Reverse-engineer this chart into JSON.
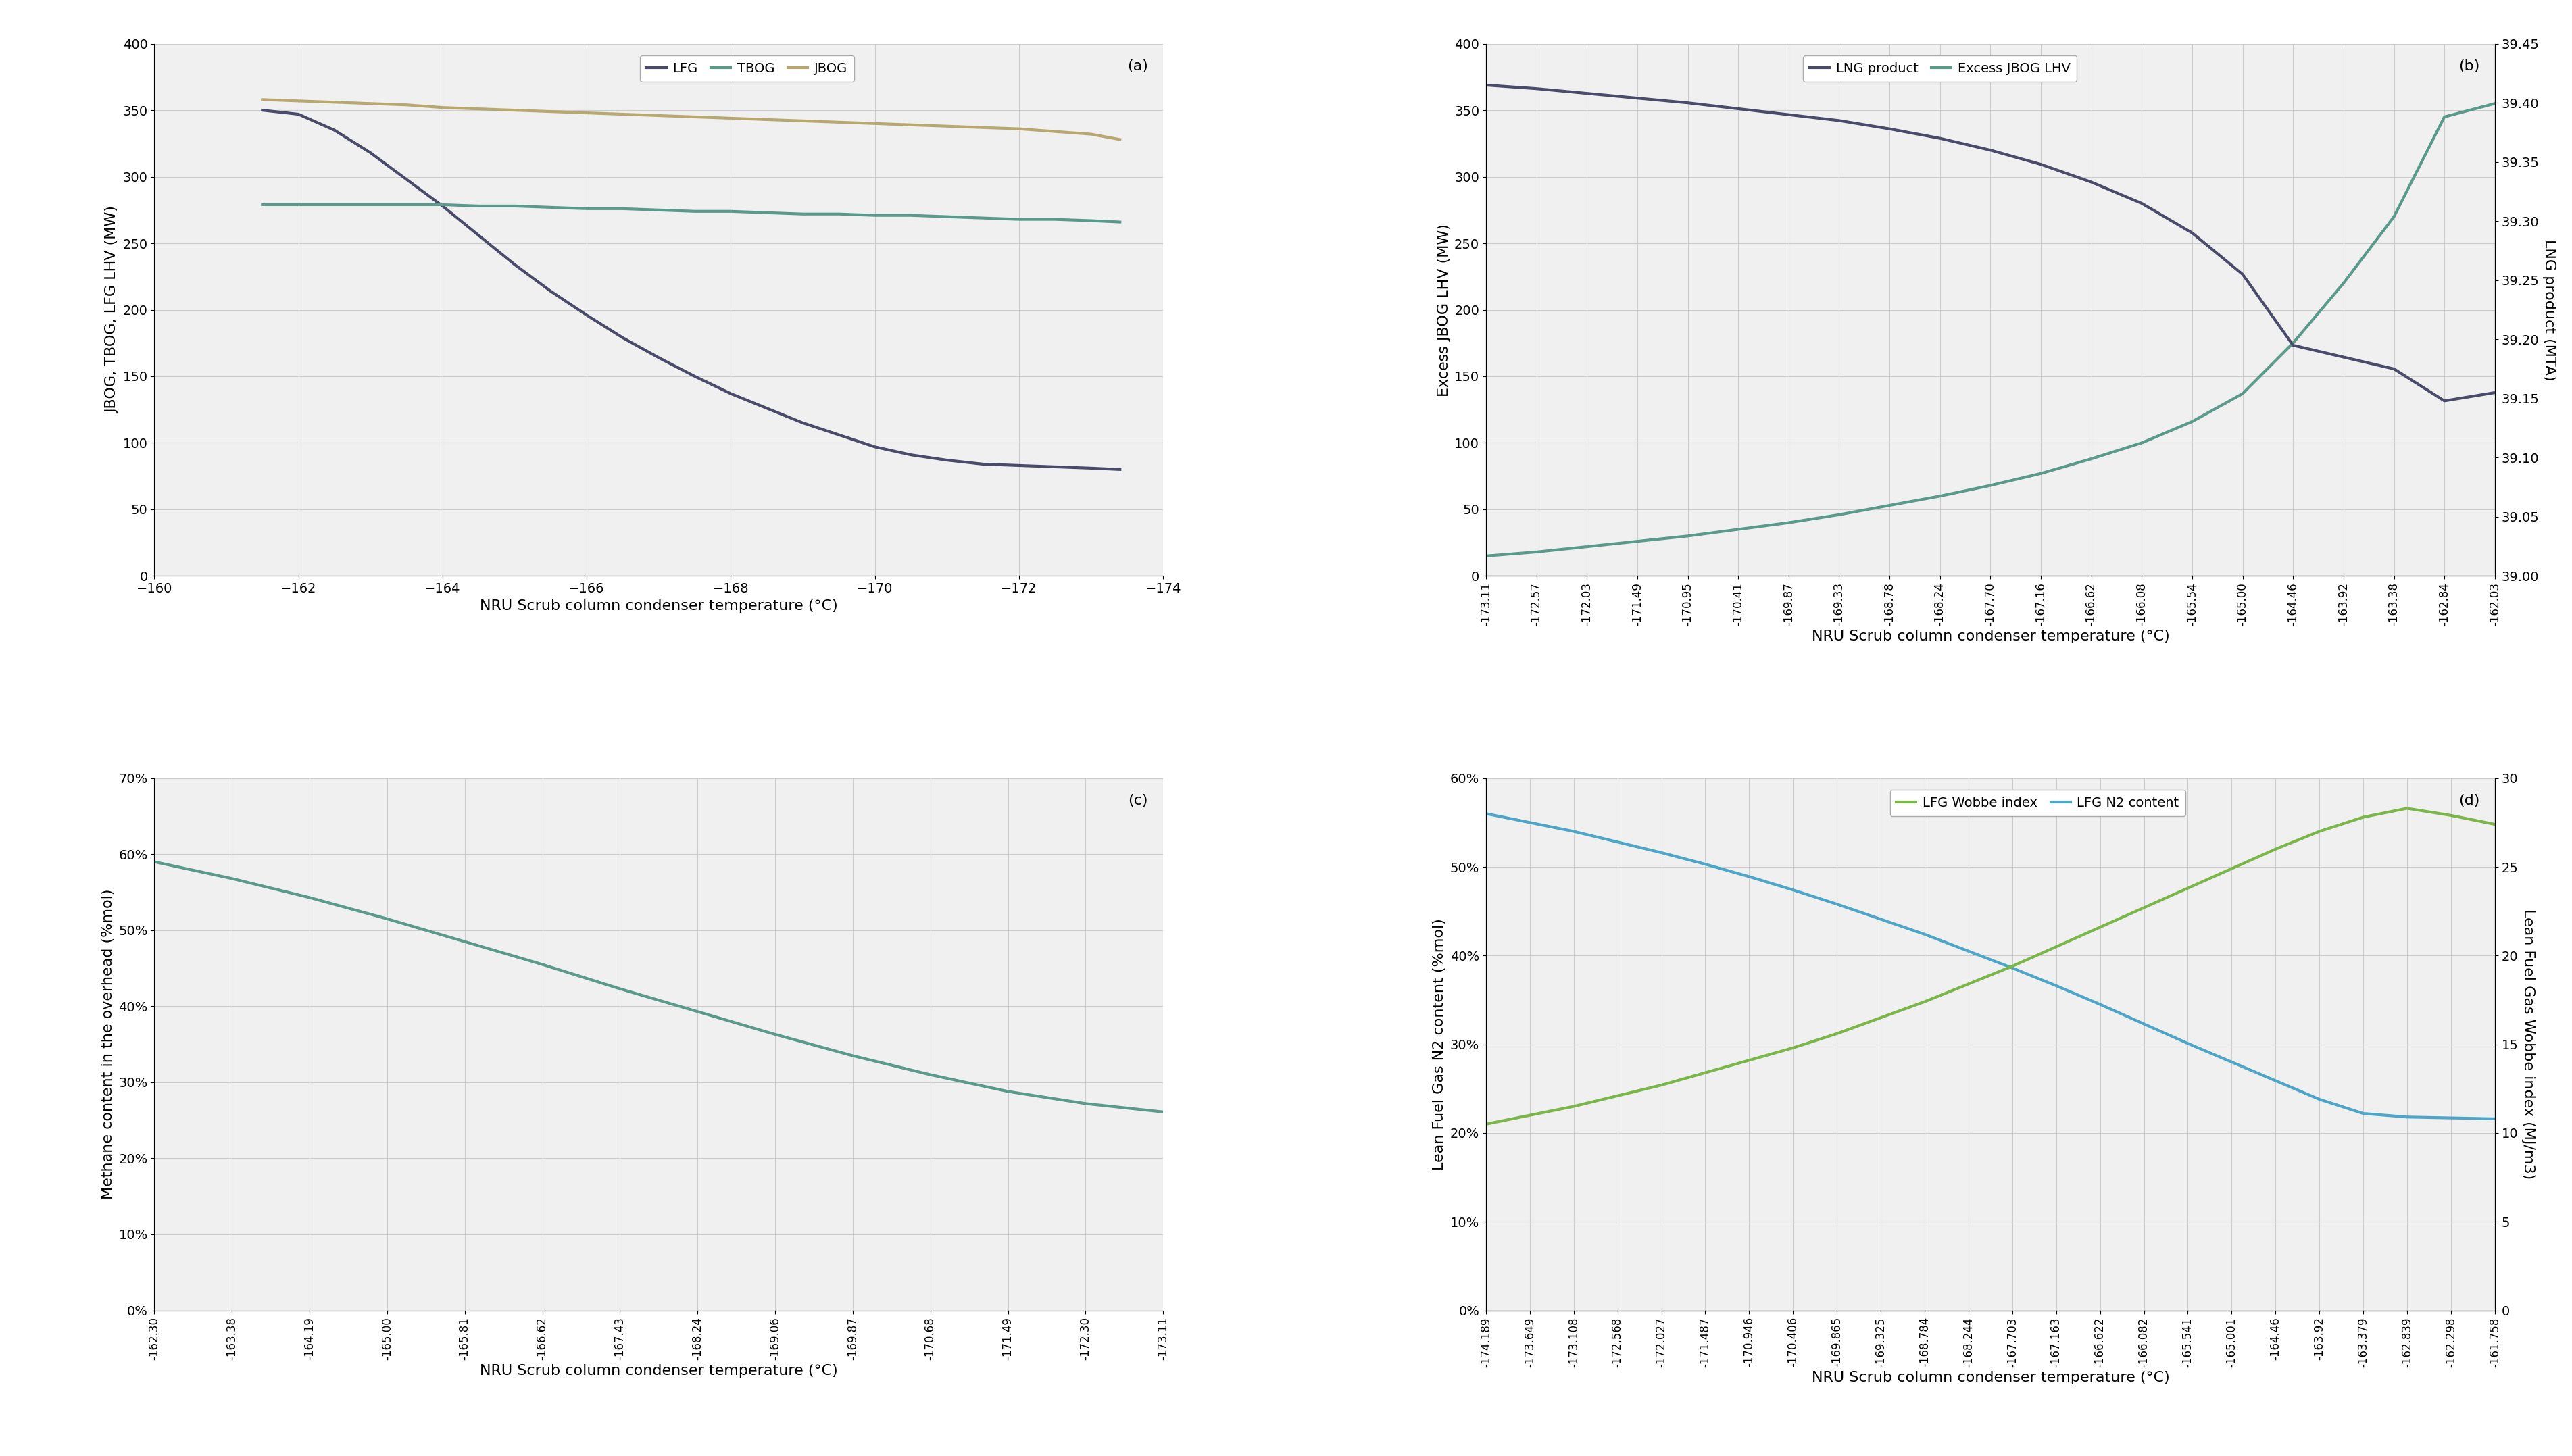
{
  "panel_a": {
    "title": "(a)",
    "xlabel": "NRU Scrub column condenser temperature (°C)",
    "ylabel": "JBOG, TBOG, LFG LHV (MW)",
    "xlim": [
      -160,
      -174
    ],
    "ylim": [
      0,
      400
    ],
    "yticks": [
      0,
      50,
      100,
      150,
      200,
      250,
      300,
      350,
      400
    ],
    "xticks": [
      -160,
      -162,
      -164,
      -166,
      -168,
      -170,
      -172,
      -174
    ],
    "LFG_x": [
      -161.5,
      -162.0,
      -162.5,
      -163.0,
      -163.5,
      -164.0,
      -164.5,
      -165.0,
      -165.5,
      -166.0,
      -166.5,
      -167.0,
      -167.5,
      -168.0,
      -168.5,
      -169.0,
      -169.5,
      -170.0,
      -170.5,
      -171.0,
      -171.5,
      -172.0,
      -172.5,
      -173.0,
      -173.4
    ],
    "LFG_y": [
      350,
      347,
      335,
      318,
      298,
      278,
      256,
      234,
      214,
      196,
      179,
      164,
      150,
      137,
      126,
      115,
      106,
      97,
      91,
      87,
      84,
      83,
      82,
      81,
      80
    ],
    "TBOG_x": [
      -161.5,
      -162.0,
      -162.5,
      -163.0,
      -163.5,
      -164.0,
      -164.5,
      -165.0,
      -165.5,
      -166.0,
      -166.5,
      -167.0,
      -167.5,
      -168.0,
      -168.5,
      -169.0,
      -169.5,
      -170.0,
      -170.5,
      -171.0,
      -171.5,
      -172.0,
      -172.5,
      -173.0,
      -173.4
    ],
    "TBOG_y": [
      279,
      279,
      279,
      279,
      279,
      279,
      278,
      278,
      277,
      276,
      276,
      275,
      274,
      274,
      273,
      272,
      272,
      271,
      271,
      270,
      269,
      268,
      268,
      267,
      266
    ],
    "JBOG_x": [
      -161.5,
      -162.0,
      -162.5,
      -163.0,
      -163.5,
      -164.0,
      -164.5,
      -165.0,
      -165.5,
      -166.0,
      -166.5,
      -167.0,
      -167.5,
      -168.0,
      -168.5,
      -169.0,
      -169.5,
      -170.0,
      -170.5,
      -171.0,
      -171.5,
      -172.0,
      -172.5,
      -173.0,
      -173.4
    ],
    "JBOG_y": [
      358,
      357,
      356,
      355,
      354,
      352,
      351,
      350,
      349,
      348,
      347,
      346,
      345,
      344,
      343,
      342,
      341,
      340,
      339,
      338,
      337,
      336,
      334,
      332,
      328
    ],
    "LFG_color": "#4a4a6a",
    "TBOG_color": "#5a9a8a",
    "JBOG_color": "#b8a870",
    "linewidth": 3.0
  },
  "panel_b": {
    "title": "(b)",
    "xlabel": "NRU Scrub column condenser temperature (°C)",
    "ylabel_left": "Excess JBOG LHV (MW)",
    "ylabel_right": "LNG product (MTA)",
    "ylim_left": [
      0,
      400
    ],
    "ylim_right": [
      39.0,
      39.45
    ],
    "xtick_labels": [
      "-173.11",
      "-172.57",
      "-172.03",
      "-171.49",
      "-170.95",
      "-170.41",
      "-169.87",
      "-169.33",
      "-168.78",
      "-168.24",
      "-167.70",
      "-167.16",
      "-166.62",
      "-166.08",
      "-165.54",
      "-165.00",
      "-164.46",
      "-163.92",
      "-163.38",
      "-162.84",
      "-162.03"
    ],
    "yticks_left": [
      0,
      50,
      100,
      150,
      200,
      250,
      300,
      350,
      400
    ],
    "yticks_right": [
      39.0,
      39.05,
      39.1,
      39.15,
      39.2,
      39.25,
      39.3,
      39.35,
      39.4,
      39.45
    ],
    "LNG_x": [
      0,
      1,
      2,
      3,
      4,
      5,
      6,
      7,
      8,
      9,
      10,
      11,
      12,
      13,
      14,
      15,
      16,
      17,
      18,
      19,
      20
    ],
    "LNG_y": [
      39.415,
      39.412,
      39.408,
      39.404,
      39.4,
      39.395,
      39.39,
      39.385,
      39.378,
      39.37,
      39.36,
      39.348,
      39.333,
      39.315,
      39.29,
      39.255,
      39.195,
      39.185,
      39.175,
      39.148,
      39.155
    ],
    "ExcessJBOG_x": [
      0,
      1,
      2,
      3,
      4,
      5,
      6,
      7,
      8,
      9,
      10,
      11,
      12,
      13,
      14,
      15,
      16,
      17,
      18,
      19,
      20
    ],
    "ExcessJBOG_y": [
      15,
      18,
      22,
      26,
      30,
      35,
      40,
      46,
      53,
      60,
      68,
      77,
      88,
      100,
      116,
      137,
      175,
      220,
      270,
      345,
      355
    ],
    "LNG_color": "#4a4a6a",
    "ExcessJBOG_color": "#5a9a8a",
    "linewidth": 3.0
  },
  "panel_c": {
    "title": "(c)",
    "xlabel": "NRU Scrub column condenser temperature (°C)",
    "ylabel": "Methane content in the overhead (%mol)",
    "xtick_labels": [
      "-162.30",
      "-163.38",
      "-164.19",
      "-165.00",
      "-165.81",
      "-166.62",
      "-167.43",
      "-168.24",
      "-169.06",
      "-169.87",
      "-170.68",
      "-171.49",
      "-172.30",
      "-173.11"
    ],
    "x_vals": [
      0,
      1,
      2,
      3,
      4,
      5,
      6,
      7,
      8,
      9,
      10,
      11,
      12,
      13
    ],
    "y_vals": [
      0.59,
      0.568,
      0.543,
      0.515,
      0.485,
      0.455,
      0.423,
      0.393,
      0.363,
      0.335,
      0.31,
      0.288,
      0.272,
      0.261
    ],
    "ylim": [
      0,
      0.7
    ],
    "yticks": [
      0,
      0.1,
      0.2,
      0.3,
      0.4,
      0.5,
      0.6,
      0.7
    ],
    "line_color": "#5a9a8a",
    "linewidth": 3.0
  },
  "panel_d": {
    "title": "(d)",
    "xlabel": "NRU Scrub column condenser temperature (°C)",
    "ylabel_left": "Lean Fuel Gas N2 content (%mol)",
    "ylabel_right": "Lean Fuel Gas Wobbe index (MJ/m3)",
    "xtick_labels": [
      "-174.189",
      "-173.649",
      "-173.108",
      "-172.568",
      "-172.027",
      "-171.487",
      "-170.946",
      "-170.406",
      "-169.865",
      "-169.325",
      "-168.784",
      "-168.244",
      "-167.703",
      "-167.163",
      "-166.622",
      "-166.082",
      "-165.541",
      "-165.001",
      "-164.46",
      "-163.92",
      "-163.379",
      "-162.839",
      "-162.298",
      "-161.758"
    ],
    "x_vals": [
      0,
      1,
      2,
      3,
      4,
      5,
      6,
      7,
      8,
      9,
      10,
      11,
      12,
      13,
      14,
      15,
      16,
      17,
      18,
      19,
      20,
      21,
      22,
      23
    ],
    "N2_y": [
      0.56,
      0.55,
      0.54,
      0.528,
      0.516,
      0.503,
      0.489,
      0.474,
      0.458,
      0.441,
      0.424,
      0.405,
      0.386,
      0.366,
      0.345,
      0.323,
      0.301,
      0.28,
      0.259,
      0.238,
      0.222,
      0.218,
      0.217,
      0.216
    ],
    "Wobbe_y": [
      10.5,
      11.0,
      11.5,
      12.1,
      12.7,
      13.4,
      14.1,
      14.8,
      15.6,
      16.5,
      17.4,
      18.4,
      19.4,
      20.5,
      21.6,
      22.7,
      23.8,
      24.9,
      26.0,
      27.0,
      27.8,
      28.3,
      27.9,
      27.4
    ],
    "ylim_left": [
      0,
      0.6
    ],
    "ylim_right": [
      0,
      30
    ],
    "yticks_left": [
      0,
      0.1,
      0.2,
      0.3,
      0.4,
      0.5,
      0.6
    ],
    "yticks_right": [
      0,
      5,
      10,
      15,
      20,
      25,
      30
    ],
    "N2_color": "#4da6c8",
    "Wobbe_color": "#7ab648",
    "linewidth": 3.0
  },
  "background_color": "#f0f0f0",
  "grid_color": "#cccccc",
  "font_size_label": 16,
  "font_size_tick": 14,
  "font_size_legend": 14,
  "font_size_panel_label": 16
}
